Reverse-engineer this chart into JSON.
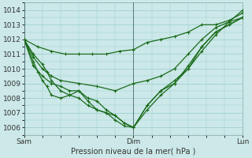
{
  "bg_color": "#cce8e8",
  "grid_color": "#99cccc",
  "line_color": "#1a6b1a",
  "xlabel": "Pression niveau de la mer( hPa )",
  "xtick_labels": [
    "Sam",
    "Dim",
    "Lun"
  ],
  "ylim": [
    1005.5,
    1014.5
  ],
  "yticks": [
    1006,
    1007,
    1008,
    1009,
    1010,
    1011,
    1012,
    1013,
    1014
  ],
  "xlim": [
    0,
    48
  ],
  "xtick_positions": [
    0,
    24,
    48
  ],
  "vlines": [
    0,
    24,
    48
  ],
  "series": [
    {
      "x": [
        0,
        3,
        6,
        9,
        12,
        15,
        18,
        21,
        24,
        27,
        30,
        33,
        36,
        39,
        42,
        45,
        48
      ],
      "y": [
        1012.0,
        1011.5,
        1011.2,
        1011.0,
        1011.0,
        1011.0,
        1011.0,
        1011.2,
        1011.3,
        1011.8,
        1012.0,
        1012.2,
        1012.5,
        1013.0,
        1013.0,
        1013.3,
        1013.8
      ]
    },
    {
      "x": [
        0,
        2,
        4,
        6,
        8,
        12,
        16,
        20,
        24,
        27,
        30,
        33,
        36,
        39,
        42,
        45,
        48
      ],
      "y": [
        1012.0,
        1010.8,
        1010.0,
        1009.5,
        1009.2,
        1009.0,
        1008.8,
        1008.5,
        1009.0,
        1009.2,
        1009.5,
        1010.0,
        1011.0,
        1012.0,
        1012.8,
        1013.2,
        1013.5
      ]
    },
    {
      "x": [
        0,
        2,
        4,
        5,
        6,
        8,
        10,
        12,
        14,
        16,
        18,
        20,
        22,
        24,
        27,
        30,
        33,
        36,
        39,
        42,
        45,
        48
      ],
      "y": [
        1012.0,
        1011.0,
        1010.3,
        1009.8,
        1009.2,
        1008.5,
        1008.2,
        1008.0,
        1007.5,
        1007.2,
        1007.0,
        1006.8,
        1006.3,
        1006.0,
        1007.5,
        1008.5,
        1009.0,
        1010.0,
        1011.5,
        1012.5,
        1013.0,
        1013.5
      ]
    },
    {
      "x": [
        0,
        2,
        3,
        4,
        5,
        6,
        8,
        10,
        12,
        14,
        16,
        18,
        20,
        22,
        24,
        27,
        30,
        33,
        36,
        39,
        42,
        45,
        48
      ],
      "y": [
        1012.0,
        1010.5,
        1009.8,
        1009.2,
        1008.8,
        1008.2,
        1008.0,
        1008.2,
        1008.5,
        1007.8,
        1007.2,
        1007.0,
        1006.5,
        1006.1,
        1006.0,
        1007.2,
        1008.2,
        1009.0,
        1010.2,
        1011.5,
        1012.5,
        1013.0,
        1013.5
      ]
    },
    {
      "x": [
        0,
        2,
        4,
        6,
        8,
        10,
        12,
        14,
        16,
        18,
        20,
        22,
        24,
        27,
        30,
        33,
        36,
        39,
        42,
        45,
        48
      ],
      "y": [
        1012.0,
        1010.2,
        1009.5,
        1009.0,
        1008.8,
        1008.5,
        1008.5,
        1008.0,
        1007.8,
        1007.2,
        1006.8,
        1006.3,
        1006.0,
        1007.5,
        1008.5,
        1009.2,
        1010.0,
        1011.2,
        1012.3,
        1013.2,
        1014.0
      ]
    }
  ],
  "title_fontsize": 7,
  "tick_fontsize": 6.5
}
